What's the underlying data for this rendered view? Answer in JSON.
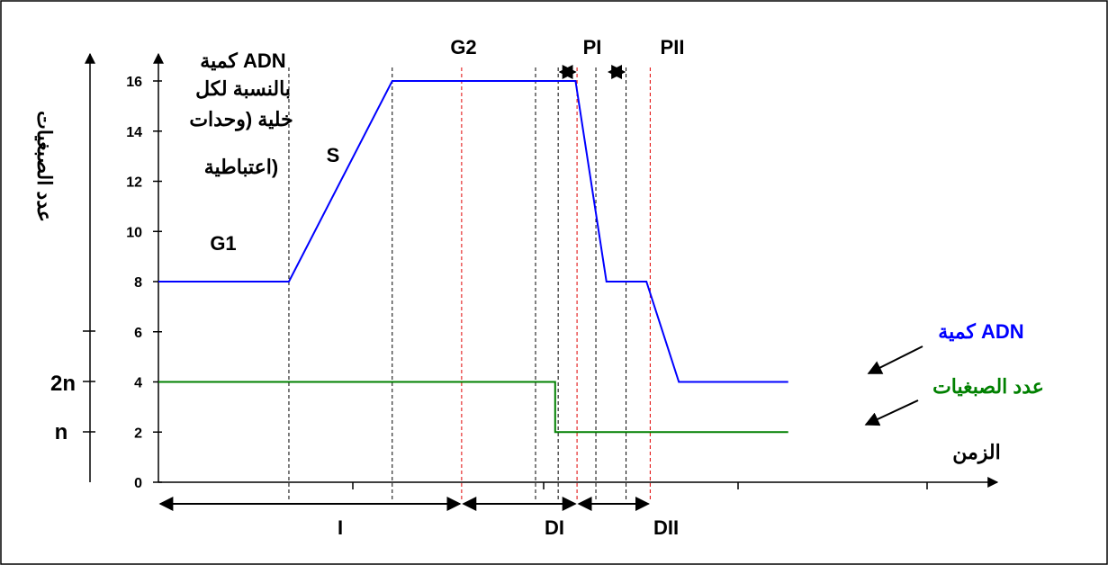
{
  "chart_data": {
    "type": "line",
    "title": "",
    "ylabel": "عدد الصبغيات",
    "xlabel": "الزمن",
    "ylim": [
      0,
      16
    ],
    "xlim": [
      0,
      100
    ],
    "y_ticks": [
      "0",
      "2",
      "4",
      "6",
      "8",
      "10",
      "12",
      "14",
      "16"
    ],
    "left_axis_labels": [
      "2n",
      "n"
    ],
    "inner_ylabel": [
      "كمية ADN",
      "بالنسبة لكل",
      "خلية (وحدات",
      "اعتباطية)"
    ],
    "series": [
      {
        "name": "كمية ADN",
        "color": "#0000ff",
        "x": [
          0,
          17.3,
          31.0,
          50.0,
          55.3,
          59.4,
          64.7,
          69.0,
          83.5
        ],
        "y": [
          8,
          8,
          16,
          16,
          16,
          8,
          8,
          4,
          4
        ]
      },
      {
        "name": "عدد الصبغيات",
        "color": "#008000",
        "x": [
          0,
          52.6,
          52.6,
          83.5
        ],
        "y": [
          4,
          4,
          2,
          2
        ]
      }
    ],
    "phase_labels": [
      "G1",
      "S",
      "G2",
      "PI",
      "PII"
    ],
    "period_labels": [
      "I",
      "DI",
      "DII"
    ],
    "boundaries_black": [
      17.3,
      31.0,
      50.0,
      53.0,
      58.0,
      62.0
    ],
    "boundaries_red": [
      40.2,
      55.5,
      65.2
    ]
  }
}
